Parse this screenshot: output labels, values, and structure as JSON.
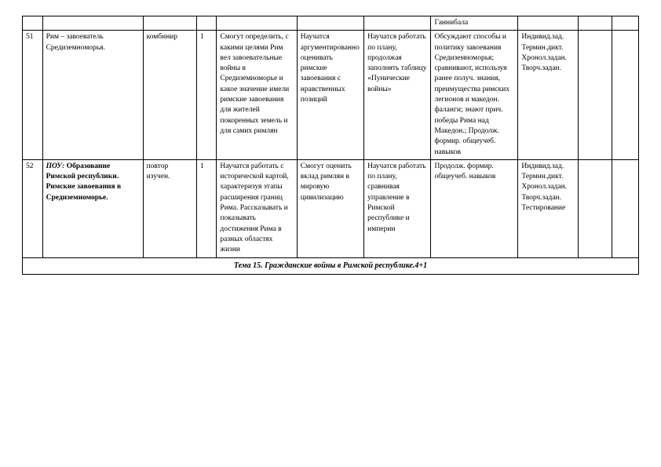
{
  "row0": {
    "c8": "Ганнибала"
  },
  "row1": {
    "num": "51",
    "topic": "Рим – завоеватель Средиземноморья.",
    "type": "комбинир",
    "hours": "1",
    "c5": "Смогут определить, с какими целями Рим вел завоевательные войны в Средиземноморье и какое значение имели римские завоевания для жителей покоренных земель и для самих римлян",
    "c6": "Научатся аргументированно оценивать римские завоевания с нравственных позиций",
    "c7": "Научатся работать по плану, продолжая заполнять таблицу «Пунические войны»",
    "c8": "Обсуждают способы и политику завоевания Средиземноморья; сравнивают, используя ранее получ. знания, преимущества римских легионов и македон. фаланги; знают прич. победы Рима над Македон.; Продолж. формир. общеучеб. навыков",
    "c9": "Индивид.зад. Термин.дикт. Хронол.задан. Творч.задан."
  },
  "row2": {
    "num": "52",
    "topic_label": "ПОУ:",
    "topic_rest": " Образование Римской республики. Римские завоевания в Средиземноморье.",
    "type": "повтор изучен.",
    "hours": "1",
    "c5": "Научатся работать с исторической картой, характеризуя этапы расширения границ Рима. Рассказывать и показывать достижения Рима в разных областях жизни",
    "c6": "Смогут оценить вклад римлян в мировую цивилизацию",
    "c7": "Научатся работать по плану, сравнивая управление в Римской республике и империи",
    "c8": "Продолж. формир. общеучеб. навыков",
    "c9": "Индивид.зад. Термин.дикт. Хронол.задан. Творч.задан. Тестирование"
  },
  "section": {
    "title": "Тема 15. Гражданские войны в Римской республике.4+1"
  }
}
